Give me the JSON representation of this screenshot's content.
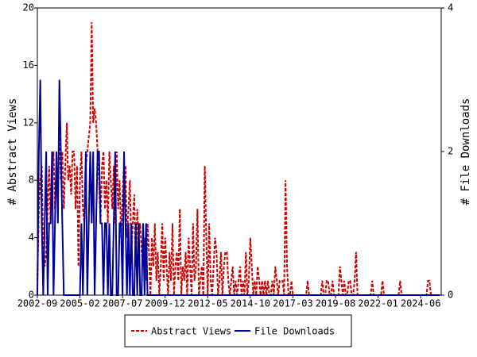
{
  "chart_data": {
    "type": "line",
    "ylabel": "# Abstract Views",
    "y2label": "# File Downloads",
    "ylim": [
      0,
      20
    ],
    "yticks": [
      0,
      4,
      8,
      12,
      16,
      20
    ],
    "y2lim": [
      0,
      4
    ],
    "y2ticks": [
      0,
      2,
      4
    ],
    "xticks": [
      "2002-09",
      "2005-02",
      "2007-07",
      "2009-12",
      "2012-05",
      "2014-10",
      "2017-03",
      "2019-08",
      "2022-01",
      "2024-06"
    ],
    "x": [
      "2002-09",
      "2002-10",
      "2002-11",
      "2002-12",
      "2003-01",
      "2003-02",
      "2003-03",
      "2003-04",
      "2003-05",
      "2003-06",
      "2003-07",
      "2003-08",
      "2003-09",
      "2003-10",
      "2003-11",
      "2003-12",
      "2004-01",
      "2004-02",
      "2004-03",
      "2004-04",
      "2004-05",
      "2004-06",
      "2004-07",
      "2004-08",
      "2004-09",
      "2004-10",
      "2004-11",
      "2004-12",
      "2005-01",
      "2005-02",
      "2005-03",
      "2005-04",
      "2005-05",
      "2005-06",
      "2005-07",
      "2005-08",
      "2005-09",
      "2005-10",
      "2005-11",
      "2005-12",
      "2006-01",
      "2006-02",
      "2006-03",
      "2006-04",
      "2006-05",
      "2006-06",
      "2006-07",
      "2006-08",
      "2006-09",
      "2006-10",
      "2006-11",
      "2006-12",
      "2007-01",
      "2007-02",
      "2007-03",
      "2007-04",
      "2007-05",
      "2007-06",
      "2007-07",
      "2007-08",
      "2007-09",
      "2007-10",
      "2007-11",
      "2007-12",
      "2008-01",
      "2008-02",
      "2008-03",
      "2008-04",
      "2008-05",
      "2008-06",
      "2008-07",
      "2008-08",
      "2008-09",
      "2008-10",
      "2008-11",
      "2008-12",
      "2009-01",
      "2009-02",
      "2009-03",
      "2009-04",
      "2009-05",
      "2009-06",
      "2009-07",
      "2009-08",
      "2009-09",
      "2009-10",
      "2009-11",
      "2009-12",
      "2010-01",
      "2010-02",
      "2010-03",
      "2010-04",
      "2010-05",
      "2010-06",
      "2010-07",
      "2010-08",
      "2010-09",
      "2010-10",
      "2010-11",
      "2010-12",
      "2011-01",
      "2011-02",
      "2011-03",
      "2011-04",
      "2011-05",
      "2011-06",
      "2011-07",
      "2011-08",
      "2011-09",
      "2011-10",
      "2011-11",
      "2011-12",
      "2012-01",
      "2012-02",
      "2012-03",
      "2012-04",
      "2012-05",
      "2012-06",
      "2012-07",
      "2012-08",
      "2012-09",
      "2012-10",
      "2012-11",
      "2012-12",
      "2013-01",
      "2013-02",
      "2013-03",
      "2013-04",
      "2013-05",
      "2013-06",
      "2013-07",
      "2013-08",
      "2013-09",
      "2013-10",
      "2013-11",
      "2013-12",
      "2014-01",
      "2014-02",
      "2014-03",
      "2014-04",
      "2014-05",
      "2014-06",
      "2014-07",
      "2014-08",
      "2014-09",
      "2014-10",
      "2014-11",
      "2014-12",
      "2015-01",
      "2015-02",
      "2015-03",
      "2015-04",
      "2015-05",
      "2015-06",
      "2015-07",
      "2015-08",
      "2015-09",
      "2015-10",
      "2015-11",
      "2015-12",
      "2016-01",
      "2016-02",
      "2016-03",
      "2016-04",
      "2016-05",
      "2016-06",
      "2016-07",
      "2016-08",
      "2016-09",
      "2016-10",
      "2016-11",
      "2016-12",
      "2017-01",
      "2017-02",
      "2017-03",
      "2017-04",
      "2017-05",
      "2017-06",
      "2017-07",
      "2017-08",
      "2017-09",
      "2017-10",
      "2017-11",
      "2017-12",
      "2018-01",
      "2018-02",
      "2018-03",
      "2018-04",
      "2018-05",
      "2018-06",
      "2018-07",
      "2018-08",
      "2018-09",
      "2018-10",
      "2018-11",
      "2018-12",
      "2019-01",
      "2019-02",
      "2019-03",
      "2019-04",
      "2019-05",
      "2019-06",
      "2019-07",
      "2019-08",
      "2019-09",
      "2019-10",
      "2019-11",
      "2019-12",
      "2020-01",
      "2020-02",
      "2020-03",
      "2020-04",
      "2020-05",
      "2020-06",
      "2020-07",
      "2020-08",
      "2020-09",
      "2020-10",
      "2020-11",
      "2020-12",
      "2021-01",
      "2021-02",
      "2021-03",
      "2021-04",
      "2021-05",
      "2021-06",
      "2021-07",
      "2021-08",
      "2021-09",
      "2021-10",
      "2021-11",
      "2021-12",
      "2022-01",
      "2022-02",
      "2022-03",
      "2022-04",
      "2022-05",
      "2022-06",
      "2022-07",
      "2022-08",
      "2022-09",
      "2022-10",
      "2022-11",
      "2022-12",
      "2023-01",
      "2023-02",
      "2023-03",
      "2023-04",
      "2023-05",
      "2023-06",
      "2023-07",
      "2023-08",
      "2023-09",
      "2023-10",
      "2023-11",
      "2023-12",
      "2024-01",
      "2024-02",
      "2024-03",
      "2024-04",
      "2024-05",
      "2024-06",
      "2024-07",
      "2024-08",
      "2024-09",
      "2024-10",
      "2024-11",
      "2024-12",
      "2025-01",
      "2025-02",
      "2025-03",
      "2025-04",
      "2025-05",
      "2025-06",
      "2025-07"
    ],
    "series": [
      {
        "name": "Abstract Views",
        "color": "#cc0000",
        "dash": true,
        "values": [
          1,
          6,
          8,
          9,
          3,
          2,
          3,
          6,
          9,
          5,
          8,
          10,
          6,
          9,
          8,
          11,
          8,
          10,
          6,
          9,
          12,
          8,
          9,
          7,
          10,
          10,
          6,
          9,
          2,
          8,
          10,
          6,
          5,
          9,
          10,
          11,
          12,
          19,
          12,
          13,
          12,
          10,
          8,
          5,
          9,
          10,
          6,
          8,
          5,
          10,
          8,
          6,
          9,
          5,
          10,
          6,
          8,
          4,
          7,
          9,
          9,
          4,
          6,
          8,
          3,
          5,
          7,
          2,
          6,
          4,
          5,
          3,
          2,
          4,
          1,
          5,
          3,
          0,
          4,
          2,
          5,
          1,
          3,
          0,
          2,
          5,
          1,
          4,
          2,
          0,
          3,
          1,
          5,
          0,
          2,
          3,
          1,
          6,
          0,
          2,
          1,
          3,
          0,
          4,
          2,
          0,
          5,
          1,
          2,
          6,
          0,
          1,
          2,
          0,
          9,
          4,
          0,
          5,
          1,
          0,
          2,
          4,
          3,
          0,
          1,
          3,
          0,
          2,
          3,
          3,
          1,
          0,
          1,
          2,
          0,
          1,
          0,
          1,
          2,
          0,
          1,
          0,
          3,
          0,
          1,
          4,
          2,
          0,
          1,
          0,
          2,
          1,
          0,
          1,
          0,
          1,
          0,
          1,
          0,
          0,
          1,
          0,
          2,
          1,
          0,
          1,
          1,
          1,
          0,
          8,
          2,
          0,
          0,
          1,
          0,
          0,
          0,
          0,
          0,
          0,
          0,
          0,
          0,
          0,
          1,
          0,
          0,
          0,
          0,
          0,
          0,
          0,
          0,
          0,
          1,
          0,
          0,
          1,
          1,
          0,
          0,
          1,
          0,
          0,
          0,
          0,
          2,
          1,
          0,
          1,
          0,
          0,
          1,
          1,
          0,
          0,
          1,
          3,
          0,
          0,
          0,
          0,
          0,
          0,
          0,
          0,
          0,
          0,
          1,
          0,
          0,
          0,
          0,
          0,
          0,
          1,
          0,
          0,
          0,
          0,
          0,
          0,
          0,
          0,
          0,
          0,
          0,
          1,
          0,
          0,
          0,
          0,
          0,
          0,
          0,
          0,
          0,
          0,
          0,
          0,
          0,
          0,
          0,
          0,
          0,
          0,
          1,
          1,
          0,
          0,
          0,
          0,
          0,
          0,
          0
        ]
      },
      {
        "name": "File Downloads",
        "color": "#000099",
        "dash": false,
        "axis": "y2",
        "values": [
          0,
          2,
          3,
          1,
          0,
          1,
          2,
          0,
          1,
          1,
          2,
          0,
          1,
          2,
          1,
          3,
          2,
          1,
          0,
          0,
          0,
          0,
          0,
          0,
          0,
          0,
          0,
          0,
          0,
          0,
          1,
          0,
          1,
          2,
          0,
          1,
          2,
          1,
          2,
          0,
          1,
          2,
          2,
          1,
          1,
          0,
          1,
          1,
          0,
          1,
          0,
          0,
          1,
          2,
          0,
          0,
          1,
          1,
          0,
          2,
          1,
          0,
          1,
          0,
          1,
          0,
          0,
          1,
          0,
          1,
          0,
          0,
          1,
          0,
          1,
          0,
          0,
          0,
          0,
          0,
          0,
          0,
          0,
          0,
          0,
          0,
          0,
          0,
          0,
          0,
          0,
          0,
          0,
          0,
          0,
          0,
          0,
          0,
          0,
          0,
          0,
          0,
          0,
          0,
          0,
          0,
          0,
          0,
          0,
          0,
          0,
          0,
          0,
          0,
          0,
          0,
          0,
          0,
          0,
          0,
          0,
          0,
          0,
          0,
          0,
          0,
          0,
          0,
          0,
          0,
          0,
          0,
          0,
          0,
          0,
          0,
          0,
          0,
          0,
          0,
          0,
          0,
          0,
          0,
          0,
          0,
          0,
          0,
          0,
          0,
          0,
          0,
          0,
          0,
          0,
          0,
          0,
          0,
          0,
          0,
          0,
          0,
          0,
          0,
          0,
          0,
          0,
          0,
          0,
          0,
          0,
          0,
          0,
          0,
          0,
          0,
          0,
          0,
          0,
          0,
          0,
          0,
          0,
          0,
          0,
          0,
          0,
          0,
          0,
          0,
          0,
          0,
          0,
          0,
          0,
          0,
          0,
          0,
          0,
          0,
          0,
          0,
          0,
          0,
          0,
          0,
          0,
          0,
          0,
          0,
          0,
          0,
          0,
          0,
          0,
          0,
          0,
          0,
          0,
          0,
          0,
          0,
          0,
          0,
          0,
          0,
          0,
          0,
          0,
          0,
          0,
          0,
          0,
          0,
          0,
          0,
          0,
          0,
          0,
          0,
          0,
          0,
          0,
          0,
          0,
          0,
          0,
          0,
          0,
          0,
          0,
          0,
          0,
          0,
          0,
          0,
          0,
          0,
          0,
          0,
          0,
          0,
          0,
          0,
          0,
          0,
          0,
          0,
          0,
          0,
          0,
          0,
          0,
          0,
          0
        ]
      }
    ]
  }
}
